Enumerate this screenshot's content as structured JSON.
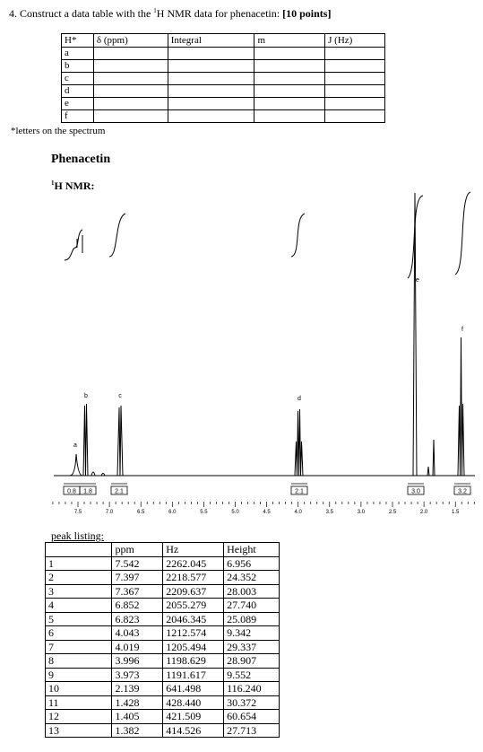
{
  "question": {
    "text_before": "4. Construct a data table with the ",
    "superscript": "1",
    "text_after": "H NMR data for phenacetin: ",
    "points": "[10 points]"
  },
  "data_table": {
    "headers": [
      "H*",
      "δ (ppm)",
      "Integral",
      "m",
      "J (Hz)"
    ],
    "row_labels": [
      "a",
      "b",
      "c",
      "d",
      "e",
      "f"
    ]
  },
  "footnote": "*letters on the spectrum",
  "spectrum": {
    "title": "Phenacetin",
    "nmr_label": {
      "superscript": "1",
      "text": "H NMR:"
    },
    "peak_labels": [
      "a",
      "b",
      "c",
      "d",
      "e",
      "f"
    ],
    "integrals": [
      "0.8",
      "1.8",
      "2.1",
      "2.1",
      "3.0",
      "3.2"
    ],
    "axis_ticks": [
      "7.5",
      "7.0",
      "6.5",
      "6.0",
      "5.5",
      "5.0",
      "4.5",
      "4.0",
      "3.5",
      "3.0",
      "2.5",
      "2.0",
      "1.5"
    ]
  },
  "peak_listing": {
    "title": "peak listing:",
    "headers": [
      "ppm",
      "Hz",
      "Height"
    ],
    "rows": [
      [
        "1",
        "7.542",
        "2262.045",
        "6.956"
      ],
      [
        "2",
        "7.397",
        "2218.577",
        "24.352"
      ],
      [
        "3",
        "7.367",
        "2209.637",
        "28.003"
      ],
      [
        "4",
        "6.852",
        "2055.279",
        "27.740"
      ],
      [
        "5",
        "6.823",
        "2046.345",
        "25.089"
      ],
      [
        "6",
        "4.043",
        "1212.574",
        "9.342"
      ],
      [
        "7",
        "4.019",
        "1205.494",
        "29.337"
      ],
      [
        "8",
        "3.996",
        "1198.629",
        "28.907"
      ],
      [
        "9",
        "3.973",
        "1191.617",
        "9.552"
      ],
      [
        "10",
        "2.139",
        "641.498",
        "116.240"
      ],
      [
        "11",
        "1.428",
        "428.440",
        "30.372"
      ],
      [
        "12",
        "1.405",
        "421.509",
        "60.654"
      ],
      [
        "13",
        "1.382",
        "414.526",
        "27.713"
      ]
    ]
  }
}
